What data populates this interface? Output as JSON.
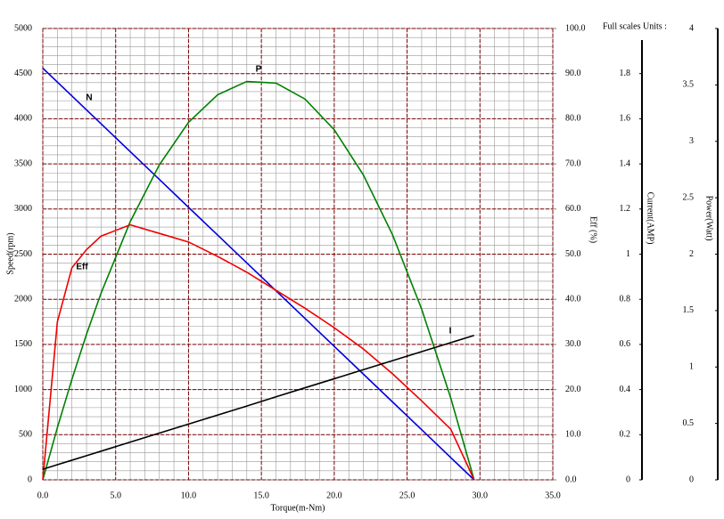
{
  "chart_data": {
    "type": "line",
    "x_label": "Torque(m-Nm)",
    "y_label": "Speed(rpm)",
    "y2_label": "Eff (%)",
    "y3_label": "Current(AMP)",
    "y4_label": "Power(Watt)",
    "units_note": "Full scales Units :",
    "x": [
      0,
      1,
      2,
      3,
      4,
      6,
      8,
      10,
      12,
      14,
      16,
      18,
      20,
      22,
      24,
      26,
      28,
      29.6
    ],
    "series": [
      {
        "name": "N",
        "color": "#0000dd",
        "axis": "y",
        "values": [
          4560,
          4406,
          4252,
          4098,
          3944,
          3636,
          3328,
          3019,
          2711,
          2403,
          2095,
          1787,
          1479,
          1171,
          863,
          555,
          246,
          0
        ]
      },
      {
        "name": "P",
        "color": "#008000",
        "axis": "y4",
        "values": [
          0,
          0.462,
          0.892,
          1.29,
          1.655,
          2.288,
          2.792,
          3.168,
          3.413,
          3.53,
          3.516,
          3.374,
          3.103,
          2.702,
          2.172,
          1.513,
          0.724,
          0
        ]
      },
      {
        "name": "Eff",
        "color": "#ee0000",
        "axis": "y2",
        "values": [
          0,
          35,
          47,
          51,
          54,
          56.5,
          54.6,
          52.7,
          49.5,
          46,
          42,
          38,
          33.7,
          29,
          23.5,
          17.5,
          11.2,
          0
        ]
      },
      {
        "name": "I",
        "color": "#000000",
        "axis": "y3",
        "values": [
          0.047,
          0.067,
          0.087,
          0.107,
          0.127,
          0.167,
          0.207,
          0.247,
          0.287,
          0.327,
          0.368,
          0.408,
          0.448,
          0.488,
          0.528,
          0.568,
          0.608,
          0.64
        ]
      }
    ],
    "xlim": [
      0,
      35
    ],
    "xticks": [
      {
        "value": 0,
        "label": "0.0"
      },
      {
        "value": 5,
        "label": "5.0"
      },
      {
        "value": 10,
        "label": "10.0"
      },
      {
        "value": 15,
        "label": "15.0"
      },
      {
        "value": 20,
        "label": "20.0"
      },
      {
        "value": 25,
        "label": "25.0"
      },
      {
        "value": 30,
        "label": "30.0"
      },
      {
        "value": 35,
        "label": "35.0"
      }
    ],
    "ylim": [
      0,
      5000
    ],
    "yticks": [
      0,
      500,
      1000,
      1500,
      2000,
      2500,
      3000,
      3500,
      4000,
      4500,
      5000
    ],
    "y2lim": [
      0,
      100
    ],
    "y2ticks": [
      {
        "value": 0,
        "label": "0.0"
      },
      {
        "value": 10,
        "label": "10.0"
      },
      {
        "value": 20,
        "label": "20.0"
      },
      {
        "value": 30,
        "label": "30.0"
      },
      {
        "value": 40,
        "label": "40.0"
      },
      {
        "value": 50,
        "label": "50.0"
      },
      {
        "value": 60,
        "label": "60.0"
      },
      {
        "value": 70,
        "label": "70.0"
      },
      {
        "value": 80,
        "label": "80.0"
      },
      {
        "value": 90,
        "label": "90.0"
      },
      {
        "value": 100,
        "label": "100.0"
      }
    ],
    "y3lim": [
      0,
      2
    ],
    "y3ticks": [
      0,
      0.2,
      0.4,
      0.6,
      0.8,
      1,
      1.2,
      1.4,
      1.6,
      1.8
    ],
    "y4lim": [
      0,
      4
    ],
    "y4ticks": [
      0,
      0.5,
      1,
      1.5,
      2,
      2.5,
      3,
      3.5,
      4
    ],
    "grid": true,
    "minor_grid_x_step": 1,
    "minor_grid_y_step": 100,
    "major_grid_color": "#800000",
    "minor_grid_color": "#999999",
    "axis_title_color": "#cc00cc"
  }
}
